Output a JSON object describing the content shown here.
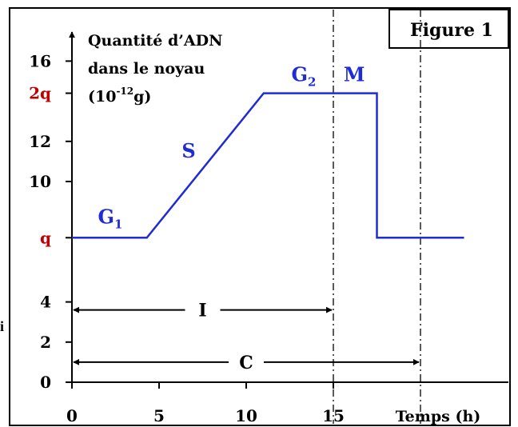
{
  "figure_label": "Figure 1",
  "stray_left_char": "i",
  "chart_data": {
    "type": "line",
    "title": "",
    "ylabel_lines": [
      "Quantité d’ADN",
      "dans le noyau",
      "(10",
      "-12",
      "g)"
    ],
    "xlabel": "Temps (h)",
    "xlim": [
      0,
      22.5
    ],
    "ylim": [
      0,
      17
    ],
    "x_ticks": [
      0,
      5,
      10,
      15
    ],
    "y_ticks": [
      {
        "value": 0,
        "label": "0",
        "color": "#000000"
      },
      {
        "value": 2,
        "label": "2",
        "color": "#000000"
      },
      {
        "value": 4,
        "label": "4",
        "color": "#000000"
      },
      {
        "value": 7.2,
        "label": "q",
        "color": "#c00000"
      },
      {
        "value": 10,
        "label": "10",
        "color": "#000000"
      },
      {
        "value": 12,
        "label": "12",
        "color": "#000000"
      },
      {
        "value": 14.4,
        "label": "2q",
        "color": "#c00000"
      },
      {
        "value": 16,
        "label": "16",
        "color": "#000000"
      }
    ],
    "series": [
      {
        "color": "#1e2bd6",
        "points": [
          [
            0,
            7.2
          ],
          [
            4.3,
            7.2
          ],
          [
            11,
            14.4
          ],
          [
            17.5,
            14.4
          ],
          [
            17.5,
            7.2
          ],
          [
            22.5,
            7.2
          ]
        ]
      }
    ],
    "phases": [
      {
        "label": "G",
        "sub": "1",
        "x": 2.2,
        "y": 7.9
      },
      {
        "label": "S",
        "sub": "",
        "x": 6.7,
        "y": 11.2
      },
      {
        "label": "G",
        "sub": "2",
        "x": 13.3,
        "y": 15.0
      },
      {
        "label": "M",
        "sub": "",
        "x": 16.2,
        "y": 15.0
      }
    ],
    "dashed_x": [
      15,
      20
    ],
    "intervals": [
      {
        "label": "I",
        "x_start": 0,
        "x_end": 15,
        "y": 3.6
      },
      {
        "label": "C",
        "x_start": 0,
        "x_end": 20,
        "y": 1.0
      }
    ],
    "grid": false,
    "legend": "none"
  }
}
